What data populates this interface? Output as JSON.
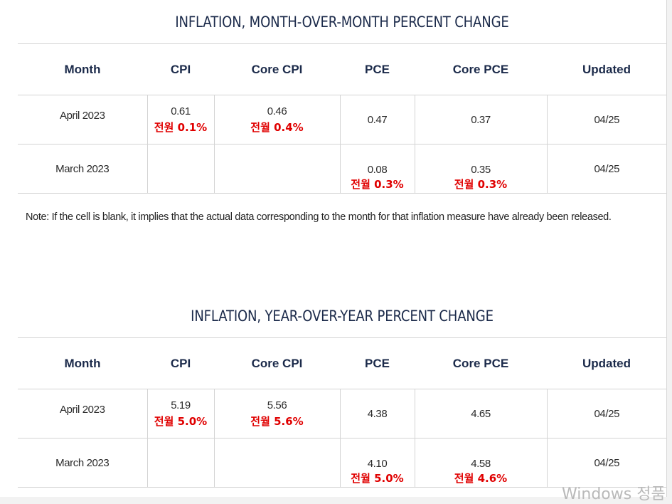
{
  "mom": {
    "title": "INFLATION, MONTH-OVER-MONTH PERCENT CHANGE",
    "headers": [
      "Month",
      "CPI",
      "Core CPI",
      "PCE",
      "Core PCE",
      "Updated"
    ],
    "rows": [
      {
        "month": "April 2023",
        "cpi": "0.61",
        "cpi_note": "전원 0.1%",
        "core_cpi": "0.46",
        "core_cpi_note": "전월 0.4%",
        "pce": "0.47",
        "pce_note": "",
        "core_pce": "0.37",
        "core_pce_note": "",
        "updated": "04/25"
      },
      {
        "month": "March 2023",
        "cpi": "",
        "cpi_note": "",
        "core_cpi": "",
        "core_cpi_note": "",
        "pce": "0.08",
        "pce_note": "전월 0.3%",
        "core_pce": "0.35",
        "core_pce_note": "전월 0.3%",
        "updated": "04/25"
      }
    ]
  },
  "note": "Note: If the cell is blank, it implies that the actual data corresponding to the month for that inflation measure have already been released.",
  "yoy": {
    "title": "INFLATION, YEAR-OVER-YEAR PERCENT CHANGE",
    "headers": [
      "Month",
      "CPI",
      "Core CPI",
      "PCE",
      "Core PCE",
      "Updated"
    ],
    "rows": [
      {
        "month": "April 2023",
        "cpi": "5.19",
        "cpi_note": "전월 5.0%",
        "core_cpi": "5.56",
        "core_cpi_note": "전월 5.6%",
        "pce": "4.38",
        "pce_note": "",
        "core_pce": "4.65",
        "core_pce_note": "",
        "updated": "04/25"
      },
      {
        "month": "March 2023",
        "cpi": "",
        "cpi_note": "",
        "core_cpi": "",
        "core_cpi_note": "",
        "pce": "4.10",
        "pce_note": "전월 5.0%",
        "core_pce": "4.58",
        "core_pce_note": "전월 4.6%",
        "updated": "04/25"
      }
    ]
  },
  "watermark": "Windows 정품"
}
